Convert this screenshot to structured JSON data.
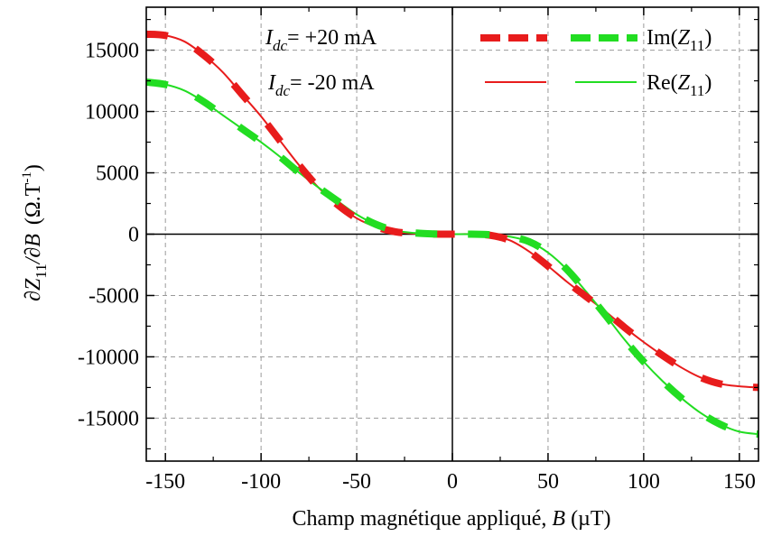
{
  "chart_data": {
    "type": "line",
    "xlabel": {
      "text": "Champ magnétique appliqué, ",
      "var": "B",
      "unit": " (µT)"
    },
    "ylabel": {
      "d1": "∂Z",
      "sub1": "11",
      "mid": "/∂B",
      "unit": "(Ω.T",
      "exp": "-1",
      "close": ")"
    },
    "xlim": [
      -160,
      160
    ],
    "ylim": [
      -18500,
      18500
    ],
    "x_ticks": [
      -150,
      -100,
      -50,
      0,
      50,
      100,
      150
    ],
    "x_tick_labels": [
      "-150",
      "-100",
      "-50",
      "0",
      "50",
      "100",
      "150"
    ],
    "y_ticks": [
      -15000,
      -10000,
      -5000,
      0,
      5000,
      10000,
      15000
    ],
    "y_tick_labels": [
      "-15000",
      "-10000",
      "-5000",
      "0",
      "5000",
      "10000",
      "15000"
    ],
    "grid": true,
    "annotations": [
      {
        "var": "I",
        "sub": "dc",
        "text": "= +20 mA",
        "color": "#e81c1c"
      },
      {
        "var": "I",
        "sub": "dc",
        "text": "= -20 mA",
        "color": "#22dd22"
      }
    ],
    "legend": {
      "placement": "top-right",
      "entries": [
        {
          "label_prefix": "Im(",
          "label_var": "Z",
          "label_sub": "11",
          "label_suffix": ")",
          "style": "dashed"
        },
        {
          "label_prefix": "Re(",
          "label_var": "Z",
          "label_sub": "11",
          "label_suffix": ")",
          "style": "solid"
        }
      ]
    },
    "series": [
      {
        "current": "+20 mA",
        "part": "Re",
        "color": "#e81c1c",
        "style": "solid",
        "x": [
          -160,
          -150,
          -140,
          -130,
          -120,
          -110,
          -100,
          -90,
          -80,
          -70,
          -60,
          -50,
          -40,
          -30,
          -20,
          -10,
          0,
          10,
          20,
          30,
          40,
          50,
          60,
          70,
          80,
          90,
          100,
          110,
          120,
          130,
          140,
          150,
          160
        ],
        "y": [
          16300,
          16200,
          15700,
          14600,
          13200,
          11400,
          9600,
          7600,
          5600,
          3800,
          2400,
          1300,
          600,
          200,
          50,
          10,
          0,
          0,
          -100,
          -500,
          -1400,
          -2600,
          -3900,
          -5100,
          -6300,
          -7600,
          -8800,
          -9900,
          -10900,
          -11700,
          -12200,
          -12400,
          -12500
        ]
      },
      {
        "current": "+20 mA",
        "part": "Im",
        "color": "#e81c1c",
        "style": "dashed",
        "x": [
          -160,
          -150,
          -140,
          -130,
          -120,
          -110,
          -100,
          -90,
          -80,
          -70,
          -60,
          -50,
          -40,
          -30,
          -20,
          -10,
          0,
          10,
          20,
          30,
          40,
          50,
          60,
          70,
          80,
          90,
          100,
          110,
          120,
          130,
          140,
          150,
          160
        ],
        "y": [
          16300,
          16200,
          15700,
          14600,
          13200,
          11400,
          9600,
          7600,
          5600,
          3800,
          2400,
          1300,
          600,
          200,
          50,
          10,
          0,
          0,
          -100,
          -500,
          -1400,
          -2600,
          -3900,
          -5100,
          -6300,
          -7600,
          -8800,
          -9900,
          -10900,
          -11700,
          -12200,
          -12400,
          -12500
        ]
      },
      {
        "current": "-20 mA",
        "part": "Re",
        "color": "#22dd22",
        "style": "solid",
        "x": [
          -160,
          -150,
          -140,
          -130,
          -120,
          -110,
          -100,
          -90,
          -80,
          -70,
          -60,
          -50,
          -40,
          -30,
          -20,
          -10,
          0,
          10,
          20,
          30,
          40,
          50,
          60,
          70,
          80,
          90,
          100,
          110,
          120,
          130,
          140,
          150,
          160
        ],
        "y": [
          12400,
          12200,
          11700,
          10800,
          9700,
          8600,
          7500,
          6300,
          5000,
          3800,
          2700,
          1600,
          800,
          300,
          100,
          20,
          0,
          0,
          -50,
          -200,
          -600,
          -1500,
          -2900,
          -4700,
          -6600,
          -8600,
          -10400,
          -12000,
          -13400,
          -14600,
          -15500,
          -16100,
          -16300
        ]
      },
      {
        "current": "-20 mA",
        "part": "Im",
        "color": "#22dd22",
        "style": "dashed",
        "x": [
          -160,
          -150,
          -140,
          -130,
          -120,
          -110,
          -100,
          -90,
          -80,
          -70,
          -60,
          -50,
          -40,
          -30,
          -20,
          -10,
          0,
          10,
          20,
          30,
          40,
          50,
          60,
          70,
          80,
          90,
          100,
          110,
          120,
          130,
          140,
          150,
          160
        ],
        "y": [
          12400,
          12200,
          11700,
          10800,
          9700,
          8600,
          7500,
          6300,
          5000,
          3800,
          2700,
          1600,
          800,
          300,
          100,
          20,
          0,
          0,
          -50,
          -200,
          -600,
          -1500,
          -2900,
          -4700,
          -6600,
          -8600,
          -10400,
          -12000,
          -13400,
          -14600,
          -15500,
          -16100,
          -16300
        ]
      }
    ]
  }
}
